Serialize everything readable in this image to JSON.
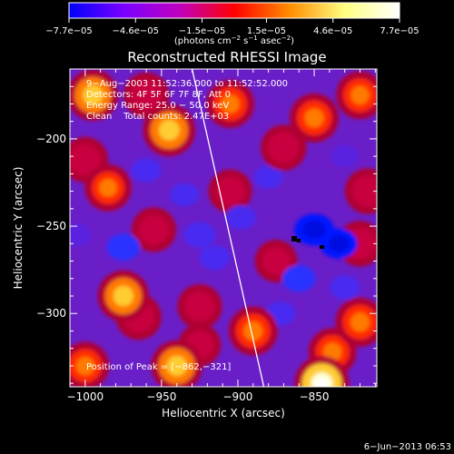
{
  "chart_data": {
    "type": "heatmap",
    "title": "Reconstructed RHESSI Image",
    "xlabel": "Heliocentric X (arcsec)",
    "ylabel": "Heliocentric Y (arcsec)",
    "xlim": [
      -1010,
      -809
    ],
    "ylim": [
      -342,
      -160
    ],
    "x_ticks": [
      -1000,
      -950,
      -900,
      -850
    ],
    "x_tick_labels": [
      "−1000",
      "−950",
      "−900",
      "−850"
    ],
    "y_ticks": [
      -200,
      -250,
      -300
    ],
    "y_tick_labels": [
      "−200",
      "−250",
      "−300"
    ],
    "colorbar": {
      "ticks": [
        -7.7e-05,
        -4.6e-05,
        -1.5e-05,
        1.5e-05,
        4.6e-05,
        7.7e-05
      ],
      "tick_labels": [
        "−7.7e−05",
        "−4.6e−05",
        "−1.5e−05",
        "1.5e−05",
        "4.6e−05",
        "7.7e−05"
      ],
      "unit_label": "(photons cm",
      "unit_sup1": "−2",
      "unit_mid": " s",
      "unit_sup2": "−1",
      "unit_mid2": " asec",
      "unit_sup3": "−2",
      "unit_end": ")",
      "colors": [
        "#0000ff",
        "#7a00ff",
        "#c000c0",
        "#ff0000",
        "#ff8c00",
        "#ffff80",
        "#ffffff"
      ]
    },
    "annotations": {
      "time_range": "9−Aug−2003 11:52:36.000 to 11:52:52.000",
      "detectors": "Detectors: 4F 5F 6F 7F 8F, Att 0",
      "energy": "Energy Range: 25.0 − 50.0 keV",
      "clean": "Clean    Total counts: 2.47E+03",
      "peak": "Position of Peak = [−862,−321]"
    },
    "limb_line": {
      "from": [
        -930,
        -160
      ],
      "to": [
        -883,
        -342
      ]
    },
    "hotspots": [
      {
        "x": -845,
        "y": -340,
        "v": 1.0
      },
      {
        "x": -838,
        "y": -322,
        "v": 0.7
      },
      {
        "x": -940,
        "y": -330,
        "v": 0.85
      },
      {
        "x": -1000,
        "y": -330,
        "v": 0.7
      },
      {
        "x": -975,
        "y": -290,
        "v": 0.85
      },
      {
        "x": -965,
        "y": -302,
        "v": 0.6
      },
      {
        "x": -890,
        "y": -310,
        "v": 0.75
      },
      {
        "x": -925,
        "y": -296,
        "v": 0.55
      },
      {
        "x": -820,
        "y": -305,
        "v": 0.75
      },
      {
        "x": -820,
        "y": -260,
        "v": 0.6
      },
      {
        "x": -815,
        "y": -230,
        "v": 0.6
      },
      {
        "x": -820,
        "y": -175,
        "v": 0.7
      },
      {
        "x": -850,
        "y": -188,
        "v": 0.75
      },
      {
        "x": -870,
        "y": -205,
        "v": 0.6
      },
      {
        "x": -905,
        "y": -180,
        "v": 0.7
      },
      {
        "x": -945,
        "y": -195,
        "v": 0.9
      },
      {
        "x": -995,
        "y": -175,
        "v": 0.85
      },
      {
        "x": -1000,
        "y": -212,
        "v": 0.6
      },
      {
        "x": -985,
        "y": -228,
        "v": 0.65
      },
      {
        "x": -905,
        "y": -230,
        "v": 0.5
      },
      {
        "x": -875,
        "y": -270,
        "v": 0.45
      },
      {
        "x": -955,
        "y": -252,
        "v": 0.55
      },
      {
        "x": -925,
        "y": -318,
        "v": 0.45
      },
      {
        "x": -960,
        "y": -175,
        "v": 0.6
      },
      {
        "x": -850,
        "y": -252,
        "v": -1.0
      },
      {
        "x": -834,
        "y": -260,
        "v": -0.9
      },
      {
        "x": -860,
        "y": -280,
        "v": -0.7
      },
      {
        "x": -872,
        "y": -300,
        "v": -0.55
      },
      {
        "x": -975,
        "y": -262,
        "v": -0.7
      },
      {
        "x": -925,
        "y": -255,
        "v": -0.65
      },
      {
        "x": -898,
        "y": -245,
        "v": -0.55
      },
      {
        "x": -915,
        "y": -268,
        "v": -0.6
      },
      {
        "x": -880,
        "y": -222,
        "v": -0.5
      },
      {
        "x": -960,
        "y": -218,
        "v": -0.55
      },
      {
        "x": -1005,
        "y": -255,
        "v": -0.45
      },
      {
        "x": -830,
        "y": -210,
        "v": -0.45
      },
      {
        "x": -830,
        "y": -285,
        "v": -0.55
      },
      {
        "x": -935,
        "y": -232,
        "v": -0.5
      }
    ]
  },
  "footer": {
    "timestamp": "6−Jun−2013 06:53"
  }
}
